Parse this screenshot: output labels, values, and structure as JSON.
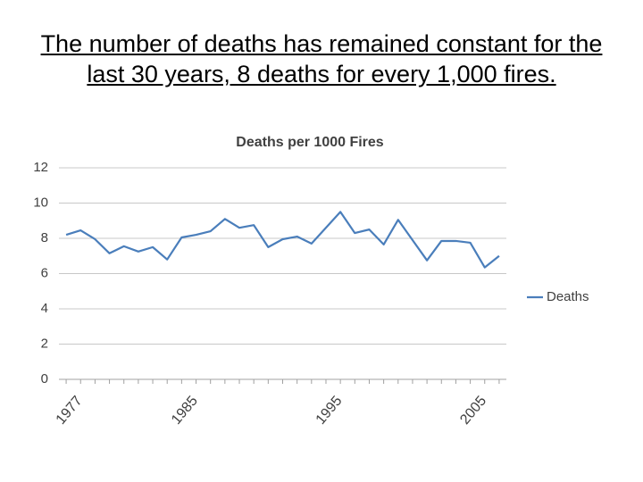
{
  "slide_title": "The number of deaths has remained constant for the last 30 years, 8 deaths for every 1,000 fires.",
  "chart_data": {
    "type": "line",
    "title": "Deaths per 1000 Fires",
    "x": [
      1977,
      1978,
      1979,
      1980,
      1981,
      1982,
      1983,
      1984,
      1985,
      1986,
      1987,
      1988,
      1989,
      1990,
      1991,
      1992,
      1993,
      1994,
      1995,
      1996,
      1997,
      1998,
      1999,
      2000,
      2001,
      2002,
      2003,
      2004,
      2005,
      2006,
      2007
    ],
    "series": [
      {
        "name": "Deaths",
        "color": "#4a7ebb",
        "values": [
          8.2,
          8.45,
          7.95,
          7.15,
          7.55,
          7.25,
          7.5,
          6.8,
          8.05,
          8.2,
          8.4,
          9.1,
          8.6,
          8.75,
          7.5,
          7.95,
          8.1,
          7.7,
          8.6,
          9.5,
          8.3,
          8.5,
          7.65,
          9.05,
          7.9,
          6.75,
          7.85,
          7.85,
          7.75,
          6.35,
          7.0
        ]
      }
    ],
    "xlim": [
      1976.5,
      2007.5
    ],
    "xticks": [
      1977,
      1985,
      1995,
      2005
    ],
    "ylim": [
      0,
      12
    ],
    "yticks": [
      0,
      2,
      4,
      6,
      8,
      10,
      12
    ],
    "grid": true,
    "legend": "right"
  }
}
